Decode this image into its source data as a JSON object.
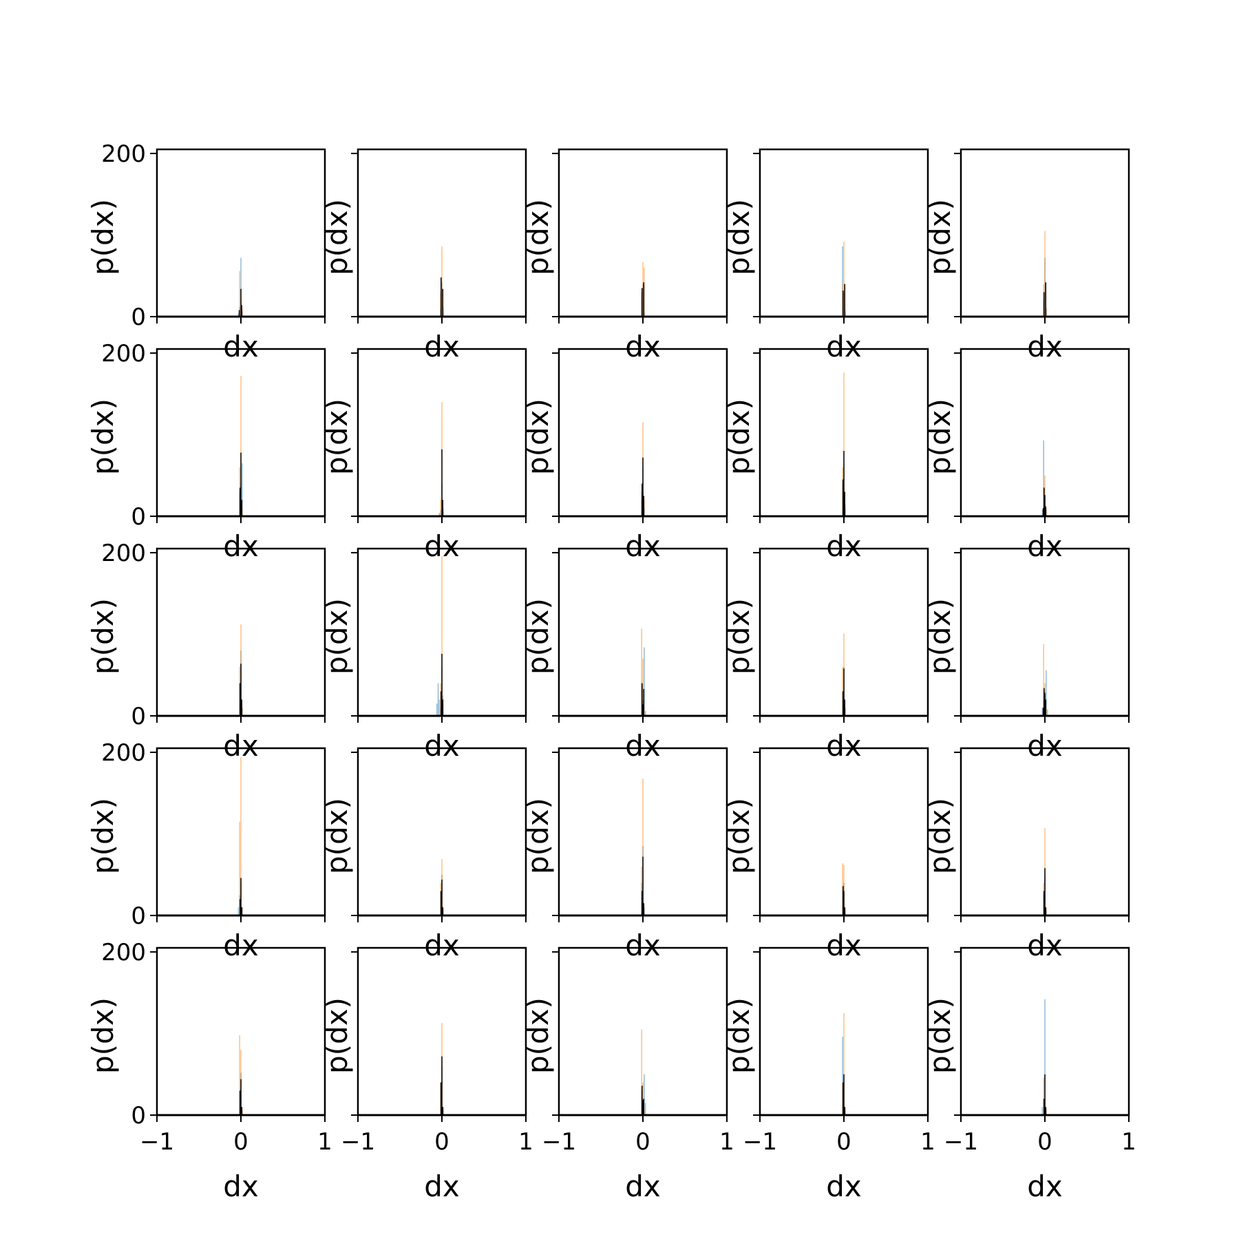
{
  "figure": {
    "background": "#ffffff"
  },
  "chart_data": {
    "type": "histogram-grid",
    "rows": 5,
    "cols": 5,
    "sharey": true,
    "xlabel": "dx",
    "ylabel": "p(dx)",
    "xlim": [
      -1,
      1
    ],
    "ylim": [
      0,
      205
    ],
    "xticks": [
      -1,
      0,
      1
    ],
    "xtick_labels": [
      "−1",
      "0",
      "1"
    ],
    "yticks": [
      0,
      200
    ],
    "ytick_labels": [
      "0",
      "200"
    ],
    "series_colors": {
      "blue": "#1f77b4",
      "orange": "#ff7f0e",
      "black": "#000000"
    },
    "bar_width": 0.012,
    "panels": [
      {
        "row": 0,
        "col": 0,
        "blue": [
          [
            -0.03,
            4
          ],
          [
            -0.015,
            12
          ],
          [
            0.0,
            72
          ],
          [
            0.015,
            6
          ]
        ],
        "orange": [
          [
            -0.015,
            56
          ],
          [
            0.0,
            20
          ],
          [
            0.015,
            8
          ]
        ],
        "black": [
          [
            -0.02,
            8
          ],
          [
            0.0,
            34
          ],
          [
            0.01,
            14
          ]
        ]
      },
      {
        "row": 0,
        "col": 1,
        "blue": [
          [
            -0.015,
            10
          ],
          [
            0.0,
            42
          ],
          [
            0.015,
            5
          ]
        ],
        "orange": [
          [
            -0.015,
            30
          ],
          [
            0.0,
            86
          ],
          [
            0.015,
            12
          ]
        ],
        "black": [
          [
            -0.01,
            48
          ],
          [
            0.01,
            34
          ]
        ]
      },
      {
        "row": 0,
        "col": 2,
        "blue": [
          [
            -0.015,
            30
          ],
          [
            0.0,
            40
          ],
          [
            0.015,
            6
          ]
        ],
        "orange": [
          [
            -0.015,
            20
          ],
          [
            0.0,
            67
          ],
          [
            0.015,
            60
          ]
        ],
        "black": [
          [
            -0.01,
            35
          ],
          [
            0.01,
            42
          ]
        ]
      },
      {
        "row": 0,
        "col": 3,
        "blue": [
          [
            -0.015,
            86
          ],
          [
            0.0,
            30
          ],
          [
            0.015,
            5
          ]
        ],
        "orange": [
          [
            -0.015,
            40
          ],
          [
            0.0,
            92
          ],
          [
            0.015,
            8
          ]
        ],
        "black": [
          [
            -0.01,
            32
          ],
          [
            0.01,
            40
          ]
        ]
      },
      {
        "row": 0,
        "col": 4,
        "blue": [
          [
            -0.015,
            20
          ],
          [
            0.0,
            72
          ],
          [
            0.015,
            10
          ]
        ],
        "orange": [
          [
            -0.015,
            40
          ],
          [
            0.0,
            105
          ],
          [
            0.015,
            10
          ]
        ],
        "black": [
          [
            -0.01,
            30
          ],
          [
            0.01,
            42
          ]
        ]
      },
      {
        "row": 1,
        "col": 0,
        "blue": [
          [
            -0.015,
            30
          ],
          [
            0.0,
            40
          ],
          [
            0.015,
            65
          ]
        ],
        "orange": [
          [
            -0.015,
            60
          ],
          [
            0.0,
            172
          ],
          [
            0.015,
            10
          ]
        ],
        "black": [
          [
            -0.01,
            35
          ],
          [
            0.0,
            78
          ],
          [
            0.01,
            20
          ]
        ]
      },
      {
        "row": 1,
        "col": 1,
        "blue": [
          [
            -0.03,
            4
          ],
          [
            -0.015,
            8
          ],
          [
            0.0,
            40
          ],
          [
            0.015,
            6
          ]
        ],
        "orange": [
          [
            -0.015,
            20
          ],
          [
            0.0,
            140
          ],
          [
            0.015,
            10
          ]
        ],
        "black": [
          [
            0.0,
            82
          ],
          [
            0.01,
            20
          ]
        ]
      },
      {
        "row": 1,
        "col": 2,
        "blue": [
          [
            -0.015,
            20
          ],
          [
            0.0,
            60
          ],
          [
            0.015,
            10
          ]
        ],
        "orange": [
          [
            -0.015,
            30
          ],
          [
            0.0,
            115
          ],
          [
            0.015,
            20
          ]
        ],
        "black": [
          [
            -0.01,
            40
          ],
          [
            0.0,
            72
          ],
          [
            0.01,
            25
          ]
        ]
      },
      {
        "row": 1,
        "col": 3,
        "blue": [
          [
            -0.015,
            40
          ],
          [
            0.0,
            60
          ],
          [
            0.015,
            10
          ]
        ],
        "orange": [
          [
            -0.015,
            60
          ],
          [
            0.0,
            176
          ],
          [
            0.015,
            15
          ]
        ],
        "black": [
          [
            -0.01,
            45
          ],
          [
            0.0,
            80
          ],
          [
            0.01,
            30
          ]
        ]
      },
      {
        "row": 1,
        "col": 4,
        "blue": [
          [
            -0.03,
            8
          ],
          [
            -0.015,
            93
          ],
          [
            0.0,
            20
          ],
          [
            0.015,
            8
          ]
        ],
        "orange": [
          [
            -0.015,
            20
          ],
          [
            0.0,
            50
          ],
          [
            0.015,
            10
          ]
        ],
        "black": [
          [
            -0.02,
            10
          ],
          [
            -0.01,
            35
          ],
          [
            0.0,
            26
          ],
          [
            0.01,
            12
          ]
        ]
      },
      {
        "row": 2,
        "col": 0,
        "blue": [
          [
            -0.015,
            40
          ],
          [
            0.0,
            80
          ],
          [
            0.015,
            10
          ]
        ],
        "orange": [
          [
            -0.015,
            60
          ],
          [
            0.0,
            112
          ],
          [
            0.015,
            10
          ]
        ],
        "black": [
          [
            -0.01,
            40
          ],
          [
            0.0,
            64
          ],
          [
            0.01,
            20
          ]
        ]
      },
      {
        "row": 2,
        "col": 1,
        "blue": [
          [
            -0.06,
            15
          ],
          [
            -0.045,
            40
          ],
          [
            -0.03,
            20
          ],
          [
            -0.015,
            10
          ],
          [
            0.0,
            60
          ]
        ],
        "orange": [
          [
            -0.015,
            40
          ],
          [
            0.0,
            196
          ],
          [
            0.015,
            25
          ]
        ],
        "black": [
          [
            -0.01,
            30
          ],
          [
            0.0,
            76
          ],
          [
            0.01,
            20
          ]
        ]
      },
      {
        "row": 2,
        "col": 2,
        "blue": [
          [
            -0.015,
            40
          ],
          [
            0.0,
            20
          ],
          [
            0.015,
            84
          ],
          [
            0.03,
            6
          ]
        ],
        "orange": [
          [
            -0.015,
            107
          ],
          [
            0.0,
            70
          ],
          [
            0.015,
            10
          ]
        ],
        "black": [
          [
            -0.01,
            40
          ],
          [
            0.0,
            14
          ],
          [
            0.01,
            33
          ]
        ]
      },
      {
        "row": 2,
        "col": 3,
        "blue": [
          [
            -0.015,
            30
          ],
          [
            0.0,
            60
          ],
          [
            0.015,
            10
          ]
        ],
        "orange": [
          [
            -0.015,
            60
          ],
          [
            0.0,
            101
          ],
          [
            0.015,
            10
          ]
        ],
        "black": [
          [
            -0.01,
            30
          ],
          [
            0.0,
            58
          ],
          [
            0.01,
            20
          ]
        ]
      },
      {
        "row": 2,
        "col": 4,
        "blue": [
          [
            -0.03,
            10
          ],
          [
            -0.015,
            20
          ],
          [
            0.0,
            30
          ],
          [
            0.015,
            56
          ],
          [
            0.03,
            8
          ]
        ],
        "orange": [
          [
            -0.015,
            88
          ],
          [
            0.0,
            40
          ],
          [
            0.015,
            10
          ]
        ],
        "black": [
          [
            -0.02,
            10
          ],
          [
            -0.01,
            34
          ],
          [
            0.0,
            28
          ],
          [
            0.01,
            20
          ]
        ]
      },
      {
        "row": 3,
        "col": 0,
        "blue": [
          [
            -0.03,
            10
          ],
          [
            -0.015,
            25
          ],
          [
            0.0,
            40
          ],
          [
            0.015,
            10
          ]
        ],
        "orange": [
          [
            -0.015,
            115
          ],
          [
            0.0,
            194
          ],
          [
            0.015,
            10
          ]
        ],
        "black": [
          [
            -0.01,
            20
          ],
          [
            0.0,
            46
          ],
          [
            0.01,
            10
          ]
        ]
      },
      {
        "row": 3,
        "col": 1,
        "blue": [
          [
            -0.015,
            30
          ],
          [
            0.0,
            50
          ],
          [
            0.015,
            6
          ]
        ],
        "orange": [
          [
            -0.015,
            40
          ],
          [
            0.0,
            69
          ],
          [
            0.015,
            10
          ]
        ],
        "black": [
          [
            -0.01,
            30
          ],
          [
            0.0,
            44
          ],
          [
            0.01,
            10
          ]
        ]
      },
      {
        "row": 3,
        "col": 2,
        "blue": [
          [
            -0.015,
            40
          ],
          [
            0.0,
            85
          ],
          [
            0.015,
            10
          ]
        ],
        "orange": [
          [
            -0.015,
            60
          ],
          [
            0.0,
            168
          ],
          [
            0.015,
            10
          ]
        ],
        "black": [
          [
            -0.01,
            30
          ],
          [
            0.0,
            72
          ],
          [
            0.01,
            15
          ]
        ]
      },
      {
        "row": 3,
        "col": 3,
        "blue": [
          [
            -0.015,
            30
          ],
          [
            0.0,
            40
          ],
          [
            0.015,
            6
          ]
        ],
        "orange": [
          [
            -0.015,
            64
          ],
          [
            0.0,
            62
          ],
          [
            0.015,
            10
          ]
        ],
        "black": [
          [
            -0.01,
            36
          ],
          [
            0.0,
            30
          ],
          [
            0.01,
            10
          ]
        ]
      },
      {
        "row": 3,
        "col": 4,
        "blue": [
          [
            -0.015,
            30
          ],
          [
            0.0,
            50
          ],
          [
            0.015,
            6
          ]
        ],
        "orange": [
          [
            -0.015,
            40
          ],
          [
            0.0,
            107
          ],
          [
            0.015,
            10
          ]
        ],
        "black": [
          [
            -0.01,
            30
          ],
          [
            0.0,
            58
          ],
          [
            0.01,
            10
          ]
        ]
      },
      {
        "row": 4,
        "col": 0,
        "blue": [
          [
            -0.015,
            30
          ],
          [
            0.0,
            52
          ],
          [
            0.015,
            6
          ]
        ],
        "orange": [
          [
            -0.015,
            98
          ],
          [
            0.0,
            80
          ],
          [
            0.015,
            10
          ]
        ],
        "black": [
          [
            -0.01,
            30
          ],
          [
            0.0,
            44
          ],
          [
            0.01,
            10
          ]
        ]
      },
      {
        "row": 4,
        "col": 1,
        "blue": [
          [
            -0.015,
            40
          ],
          [
            0.0,
            60
          ],
          [
            0.015,
            6
          ]
        ],
        "orange": [
          [
            -0.015,
            40
          ],
          [
            0.0,
            113
          ],
          [
            0.015,
            10
          ]
        ],
        "black": [
          [
            -0.01,
            40
          ],
          [
            0.0,
            72
          ],
          [
            0.01,
            10
          ]
        ]
      },
      {
        "row": 4,
        "col": 2,
        "blue": [
          [
            -0.015,
            30
          ],
          [
            0.0,
            20
          ],
          [
            0.015,
            50
          ],
          [
            0.03,
            15
          ]
        ],
        "orange": [
          [
            -0.015,
            105
          ],
          [
            0.0,
            40
          ],
          [
            0.015,
            10
          ]
        ],
        "black": [
          [
            -0.01,
            36
          ],
          [
            0.0,
            18
          ],
          [
            0.01,
            20
          ]
        ]
      },
      {
        "row": 4,
        "col": 3,
        "blue": [
          [
            -0.015,
            96
          ],
          [
            0.0,
            40
          ],
          [
            0.015,
            6
          ]
        ],
        "orange": [
          [
            -0.015,
            40
          ],
          [
            0.0,
            125
          ],
          [
            0.015,
            10
          ]
        ],
        "black": [
          [
            -0.01,
            40
          ],
          [
            0.0,
            50
          ],
          [
            0.01,
            10
          ]
        ]
      },
      {
        "row": 4,
        "col": 4,
        "blue": [
          [
            -0.03,
            10
          ],
          [
            -0.015,
            20
          ],
          [
            0.0,
            142
          ],
          [
            0.015,
            6
          ]
        ],
        "orange": [
          [
            -0.015,
            46
          ],
          [
            0.0,
            20
          ],
          [
            0.015,
            8
          ]
        ],
        "black": [
          [
            -0.01,
            20
          ],
          [
            0.0,
            50
          ],
          [
            0.01,
            10
          ]
        ]
      }
    ]
  }
}
